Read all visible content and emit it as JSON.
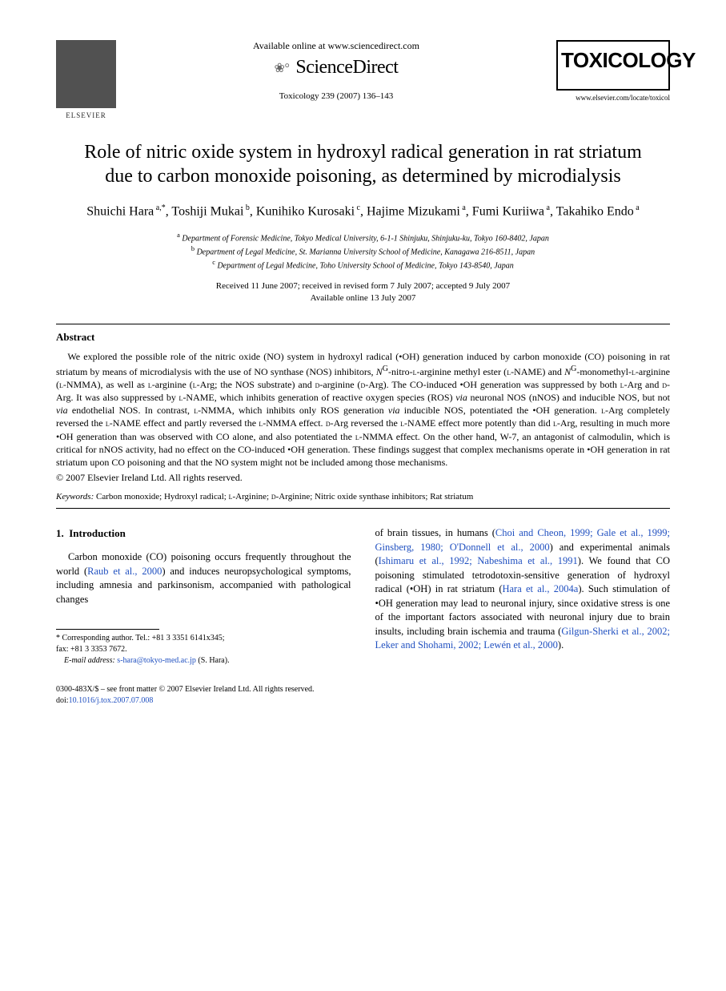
{
  "header": {
    "avail_online": "Available online at www.sciencedirect.com",
    "sd_brand": "ScienceDirect",
    "citation": "Toxicology 239 (2007) 136–143",
    "journal_logo": "TOXICOLOGY",
    "journal_url": "www.elsevier.com/locate/toxicol",
    "publisher": "ELSEVIER"
  },
  "article": {
    "title": "Role of nitric oxide system in hydroxyl radical generation in rat striatum due to carbon monoxide poisoning, as determined by microdialysis",
    "authors_html": "Shuichi Hara<sup> a,*</sup>, Toshiji Mukai<sup> b</sup>, Kunihiko Kurosaki<sup> c</sup>, Hajime Mizukami<sup> a</sup>, Fumi Kuriiwa<sup> a</sup>, Takahiko Endo<sup> a</sup>",
    "affiliations": [
      "a Department of Forensic Medicine, Tokyo Medical University, 6-1-1 Shinjuku, Shinjuku-ku, Tokyo 160-8402, Japan",
      "b Department of Legal Medicine, St. Marianna University School of Medicine, Kanagawa 216-8511, Japan",
      "c Department of Legal Medicine, Toho University School of Medicine, Tokyo 143-8540, Japan"
    ],
    "dates_line1": "Received 11 June 2007; received in revised form 7 July 2007; accepted 9 July 2007",
    "dates_line2": "Available online 13 July 2007"
  },
  "abstract": {
    "heading": "Abstract",
    "text_html": "We explored the possible role of the nitric oxide (NO) system in hydroxyl radical (•OH) generation induced by carbon monoxide (CO) poisoning in rat striatum by means of microdialysis with the use of NO synthase (NOS) inhibitors, <i>N</i><sup>G</sup>-nitro-<span class='smallcaps'>l</span>-arginine methyl ester (<span class='smallcaps'>l</span>-NAME) and <i>N</i><sup>G</sup>-monomethyl-<span class='smallcaps'>l</span>-arginine (<span class='smallcaps'>l</span>-NMMA), as well as <span class='smallcaps'>l</span>-arginine (<span class='smallcaps'>l</span>-Arg; the NOS substrate) and <span class='smallcaps'>d</span>-arginine (<span class='smallcaps'>d</span>-Arg). The CO-induced •OH generation was suppressed by both <span class='smallcaps'>l</span>-Arg and <span class='smallcaps'>d</span>-Arg. It was also suppressed by <span class='smallcaps'>l</span>-NAME, which inhibits generation of reactive oxygen species (ROS) <i>via</i> neuronal NOS (nNOS) and inducible NOS, but not <i>via</i> endothelial NOS. In contrast, <span class='smallcaps'>l</span>-NMMA, which inhibits only ROS generation <i>via</i> inducible NOS, potentiated the •OH generation. <span class='smallcaps'>l</span>-Arg completely reversed the <span class='smallcaps'>l</span>-NAME effect and partly reversed the <span class='smallcaps'>l</span>-NMMA effect. <span class='smallcaps'>d</span>-Arg reversed the <span class='smallcaps'>l</span>-NAME effect more potently than did <span class='smallcaps'>l</span>-Arg, resulting in much more •OH generation than was observed with CO alone, and also potentiated the <span class='smallcaps'>l</span>-NMMA effect. On the other hand, W-7, an antagonist of calmodulin, which is critical for nNOS activity, had no effect on the CO-induced •OH generation. These findings suggest that complex mechanisms operate in •OH generation in rat striatum upon CO poisoning and that the NO system might not be included among those mechanisms.",
    "copyright": "© 2007 Elsevier Ireland Ltd. All rights reserved."
  },
  "keywords": {
    "label": "Keywords:",
    "text_html": " Carbon monoxide; Hydroxyl radical; <span class='smallcaps'>l</span>-Arginine; <span class='smallcaps'>d</span>-Arginine; Nitric oxide synthase inhibitors; Rat striatum"
  },
  "body": {
    "section_num": "1.",
    "section_title": "Introduction",
    "col1_html": "Carbon monoxide (CO) poisoning occurs frequently throughout the world (<span class='link'>Raub et al., 2000</span>) and induces neuropsychological symptoms, including amnesia and parkinsonism, accompanied with pathological changes",
    "col2_html": "of brain tissues, in humans (<span class='link'>Choi and Cheon, 1999; Gale et al., 1999; Ginsberg, 1980; O'Donnell et al., 2000</span>) and experimental animals (<span class='link'>Ishimaru et al., 1992; Nabeshima et al., 1991</span>). We found that CO poisoning stimulated tetrodotoxin-sensitive generation of hydroxyl radical (•OH) in rat striatum (<span class='link'>Hara et al., 2004a</span>). Such stimulation of •OH generation may lead to neuronal injury, since oxidative stress is one of the important factors associated with neuronal injury due to brain insults, including brain ischemia and trauma (<span class='link'>Gilgun-Sherki et al., 2002; Leker and Shohami, 2002; Lewén et al., 2000</span>)."
  },
  "footnote": {
    "corr": "* Corresponding author. Tel.: +81 3 3351 6141x345;",
    "fax": "fax: +81 3 3353 7672.",
    "email_label": "E-mail address:",
    "email": "s-hara@tokyo-med.ac.jp",
    "email_suffix": " (S. Hara)."
  },
  "footer": {
    "line1": "0300-483X/$ – see front matter © 2007 Elsevier Ireland Ltd. All rights reserved.",
    "doi_label": "doi:",
    "doi": "10.1016/j.tox.2007.07.008"
  }
}
